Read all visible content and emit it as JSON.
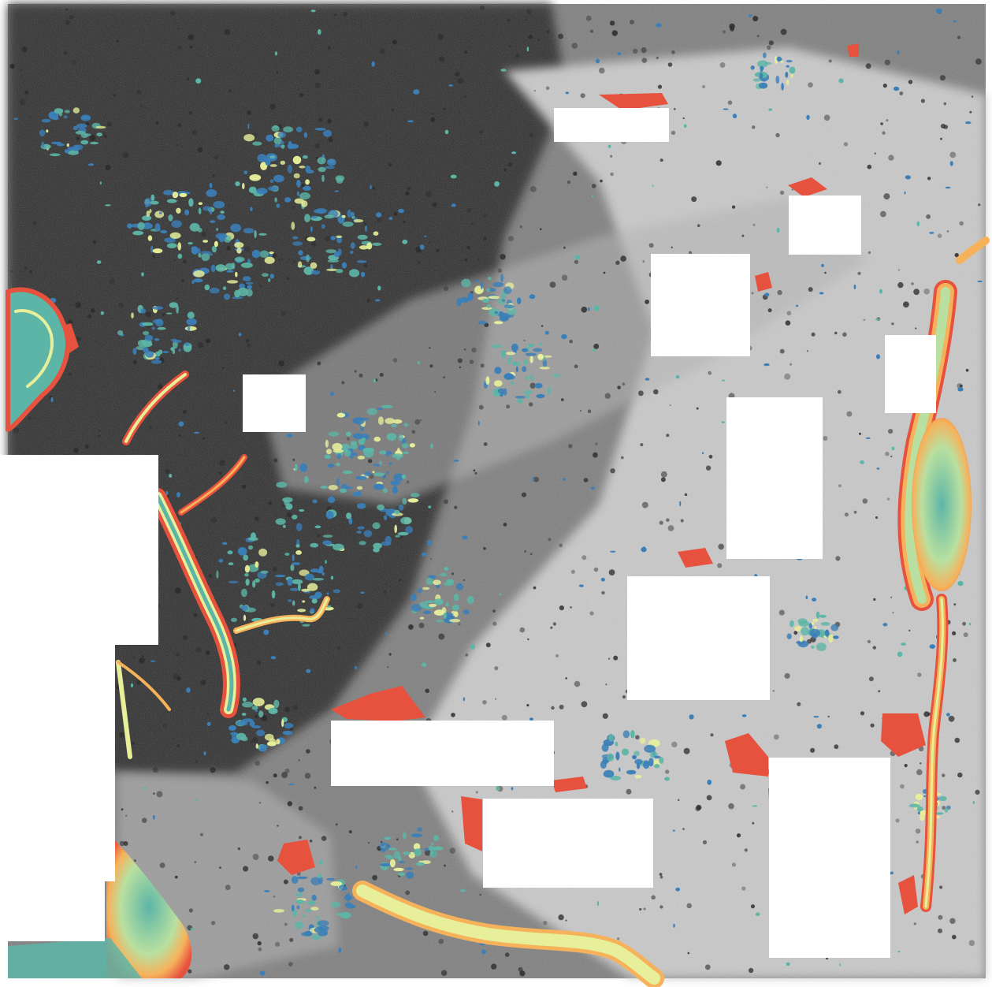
{
  "map": {
    "palette": {
      "background_light": "#d9d9d9",
      "background_mid": "#9a9a9a",
      "background_dark": "#2a2a2a",
      "low_value": "#3b7fb8",
      "mid_low_value": "#5db5a7",
      "mid_value": "#e8ef9a",
      "mid_high_value": "#f6b25b",
      "high_value": "#e6523e",
      "no_data": "#ffffff"
    }
  }
}
